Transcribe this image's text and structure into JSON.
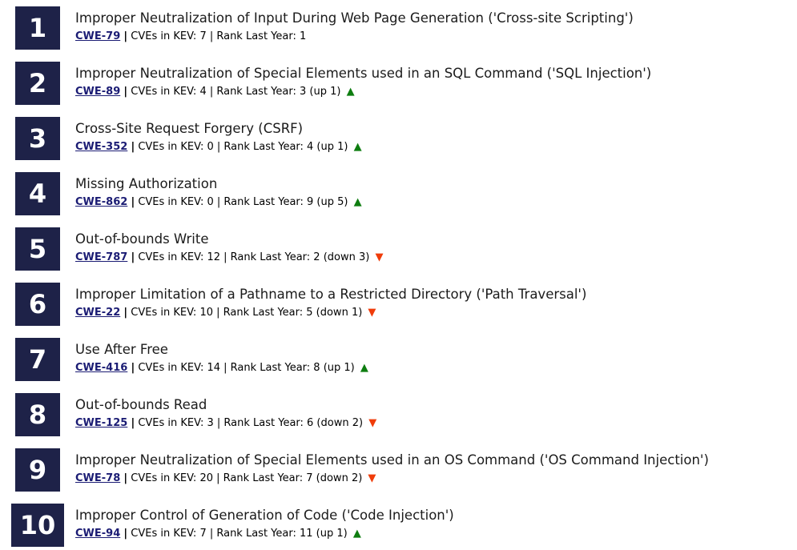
{
  "colors": {
    "rank_badge_bg": "#1e2248",
    "rank_badge_text": "#ffffff",
    "link": "#1b1c74",
    "trend_up": "#0e7d10",
    "trend_down": "#f03c0a"
  },
  "icons": {
    "up_arrow": "▲",
    "down_arrow": "▼"
  },
  "meta_labels": {
    "separator": "|",
    "kev_label": "CVEs in KEV",
    "rank_last_year_label": "Rank Last Year"
  },
  "items": [
    {
      "rank": "1",
      "title": "Improper Neutralization of Input During Web Page Generation ('Cross-site Scripting')",
      "cwe_id": "CWE-79",
      "kev_count": "7",
      "rank_last_year": "1",
      "trend": "none"
    },
    {
      "rank": "2",
      "title": "Improper Neutralization of Special Elements used in an SQL Command ('SQL Injection')",
      "cwe_id": "CWE-89",
      "kev_count": "4",
      "rank_last_year": "3 (up 1)",
      "trend": "up"
    },
    {
      "rank": "3",
      "title": "Cross-Site Request Forgery (CSRF)",
      "cwe_id": "CWE-352",
      "kev_count": "0",
      "rank_last_year": "4 (up 1)",
      "trend": "up"
    },
    {
      "rank": "4",
      "title": "Missing Authorization",
      "cwe_id": "CWE-862",
      "kev_count": "0",
      "rank_last_year": "9 (up 5)",
      "trend": "up"
    },
    {
      "rank": "5",
      "title": "Out-of-bounds Write",
      "cwe_id": "CWE-787",
      "kev_count": "12",
      "rank_last_year": "2 (down 3)",
      "trend": "down"
    },
    {
      "rank": "6",
      "title": "Improper Limitation of a Pathname to a Restricted Directory ('Path Traversal')",
      "cwe_id": "CWE-22",
      "kev_count": "10",
      "rank_last_year": "5 (down 1)",
      "trend": "down"
    },
    {
      "rank": "7",
      "title": "Use After Free",
      "cwe_id": "CWE-416",
      "kev_count": "14",
      "rank_last_year": "8 (up 1)",
      "trend": "up"
    },
    {
      "rank": "8",
      "title": "Out-of-bounds Read",
      "cwe_id": "CWE-125",
      "kev_count": "3",
      "rank_last_year": "6 (down 2)",
      "trend": "down"
    },
    {
      "rank": "9",
      "title": "Improper Neutralization of Special Elements used in an OS Command ('OS Command Injection')",
      "cwe_id": "CWE-78",
      "kev_count": "20",
      "rank_last_year": "7 (down 2)",
      "trend": "down"
    },
    {
      "rank": "10",
      "title": "Improper Control of Generation of Code ('Code Injection')",
      "cwe_id": "CWE-94",
      "kev_count": "7",
      "rank_last_year": "11 (up 1)",
      "trend": "up"
    }
  ]
}
